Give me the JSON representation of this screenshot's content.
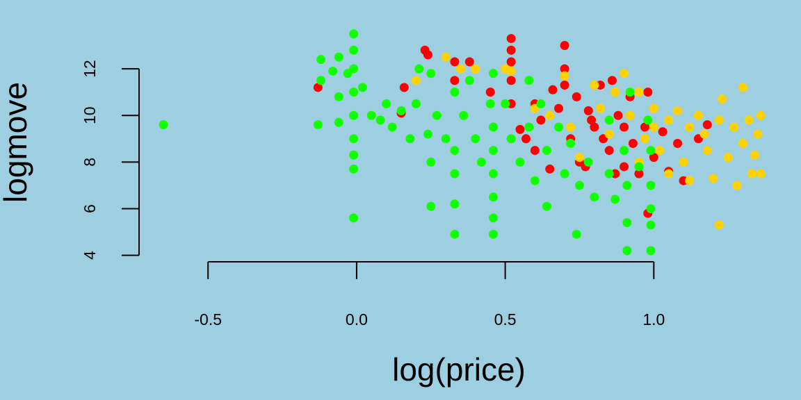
{
  "chart_data": {
    "type": "scatter",
    "x_label": "log(price)",
    "y_label": "logmove",
    "xlim": [
      -0.69,
      1.39
    ],
    "ylim": [
      3.75,
      13.85
    ],
    "xticks": [
      -0.5,
      {
        "value": 0,
        "label": "0.0"
      },
      0.5,
      {
        "value": 1,
        "label": "1.0"
      }
    ],
    "yticks": [
      4,
      6,
      8,
      10,
      12
    ],
    "background": "#9ecfe0",
    "series": [
      {
        "color": "#ff0000",
        "x": [
          -0.13,
          0.15,
          0.16,
          0.23,
          0.24,
          0.33,
          0.33,
          0.38,
          0.45,
          0.52,
          0.52,
          0.52,
          0.52,
          0.52,
          0.55,
          0.6,
          0.62,
          0.66,
          0.68,
          0.7,
          0.7,
          0.7,
          0.72,
          0.74,
          0.75,
          0.78,
          0.8,
          0.82,
          0.83,
          0.85,
          0.86,
          0.88,
          0.9,
          0.9,
          0.92,
          0.93,
          0.95,
          0.97,
          0.98,
          0.98,
          1.0,
          1.03,
          1.05,
          1.08,
          1.1,
          1.15,
          1.18,
          0.6,
          0.65,
          0.77,
          0.87,
          0.79,
          0.57
        ],
        "values": [
          11.2,
          10.1,
          11.2,
          12.8,
          12.6,
          12.3,
          11.5,
          12.3,
          11.0,
          13.3,
          12.8,
          12.3,
          11.5,
          10.5,
          9.4,
          10.5,
          9.8,
          11.1,
          10.3,
          13.0,
          12.0,
          11.3,
          9.0,
          10.8,
          8.0,
          10.2,
          9.5,
          11.3,
          9.0,
          8.5,
          11.5,
          10.0,
          7.8,
          9.5,
          10.8,
          8.8,
          7.5,
          9.5,
          11.0,
          5.8,
          8.2,
          9.3,
          7.6,
          8.8,
          7.2,
          9.0,
          9.6,
          8.5,
          7.7,
          7.8,
          7.5,
          9.8,
          9.0
        ]
      },
      {
        "color": "#ffd200",
        "x": [
          0.2,
          0.3,
          0.35,
          0.4,
          0.5,
          0.52,
          0.58,
          0.6,
          0.65,
          0.7,
          0.72,
          0.8,
          0.82,
          0.85,
          0.87,
          0.9,
          0.92,
          0.95,
          0.97,
          1.0,
          1.0,
          1.02,
          1.05,
          1.05,
          1.08,
          1.1,
          1.12,
          1.12,
          1.15,
          1.18,
          1.2,
          1.22,
          1.22,
          1.23,
          1.25,
          1.27,
          1.28,
          1.3,
          1.3,
          1.32,
          1.33,
          1.35,
          1.36,
          1.36,
          1.34,
          0.75,
          0.95,
          1.17
        ],
        "values": [
          11.5,
          12.5,
          12.0,
          12.0,
          12.0,
          11.9,
          11.5,
          10.3,
          10.0,
          11.7,
          9.5,
          11.3,
          10.3,
          9.2,
          11.0,
          11.8,
          10.0,
          11.0,
          9.0,
          9.5,
          10.3,
          8.5,
          9.8,
          7.5,
          10.2,
          8.0,
          9.5,
          7.2,
          10.0,
          8.5,
          7.3,
          9.8,
          5.3,
          10.7,
          8.2,
          9.5,
          7.0,
          11.2,
          8.8,
          9.8,
          7.5,
          9.2,
          10.0,
          7.5,
          8.3,
          8.2,
          8.0,
          9.2
        ]
      },
      {
        "color": "#11ff00",
        "x": [
          -0.65,
          -0.13,
          -0.12,
          -0.12,
          -0.08,
          -0.06,
          -0.06,
          -0.06,
          -0.03,
          -0.01,
          -0.01,
          -0.01,
          -0.01,
          -0.01,
          -0.01,
          -0.01,
          -0.01,
          -0.01,
          0.02,
          0.05,
          0.08,
          0.1,
          0.12,
          0.15,
          0.18,
          0.2,
          0.21,
          0.24,
          0.25,
          0.25,
          0.25,
          0.27,
          0.3,
          0.33,
          0.33,
          0.33,
          0.33,
          0.33,
          0.36,
          0.38,
          0.4,
          0.42,
          0.45,
          0.46,
          0.46,
          0.46,
          0.46,
          0.46,
          0.46,
          0.46,
          0.5,
          0.52,
          0.55,
          0.58,
          0.58,
          0.6,
          0.62,
          0.64,
          0.64,
          0.68,
          0.7,
          0.72,
          0.74,
          0.75,
          0.78,
          0.8,
          0.85,
          0.87,
          0.9,
          0.91,
          0.91,
          0.91,
          0.92,
          0.98,
          0.99,
          0.99,
          0.99,
          0.99,
          0.99,
          0.95,
          0.85
        ],
        "values": [
          9.6,
          9.6,
          12.4,
          11.5,
          11.9,
          12.5,
          10.8,
          9.7,
          11.8,
          13.5,
          12.8,
          12.0,
          11.0,
          10.0,
          9.0,
          8.3,
          7.7,
          5.6,
          11.2,
          10.0,
          9.8,
          10.5,
          9.5,
          10.2,
          9.0,
          10.5,
          12.0,
          9.2,
          11.8,
          8.0,
          6.1,
          10.0,
          9.0,
          11.0,
          8.5,
          7.5,
          6.2,
          4.9,
          10.0,
          11.5,
          9.0,
          8.0,
          10.5,
          11.8,
          9.5,
          8.5,
          7.5,
          6.5,
          5.6,
          4.9,
          10.5,
          9.0,
          8.0,
          11.5,
          9.5,
          7.2,
          10.5,
          8.5,
          6.1,
          9.5,
          7.5,
          8.8,
          4.9,
          7.0,
          8.0,
          6.5,
          7.5,
          6.4,
          8.5,
          7.0,
          5.4,
          4.2,
          11.0,
          9.8,
          8.5,
          7.0,
          6.0,
          5.3,
          4.2,
          7.8,
          9.8
        ]
      }
    ]
  }
}
